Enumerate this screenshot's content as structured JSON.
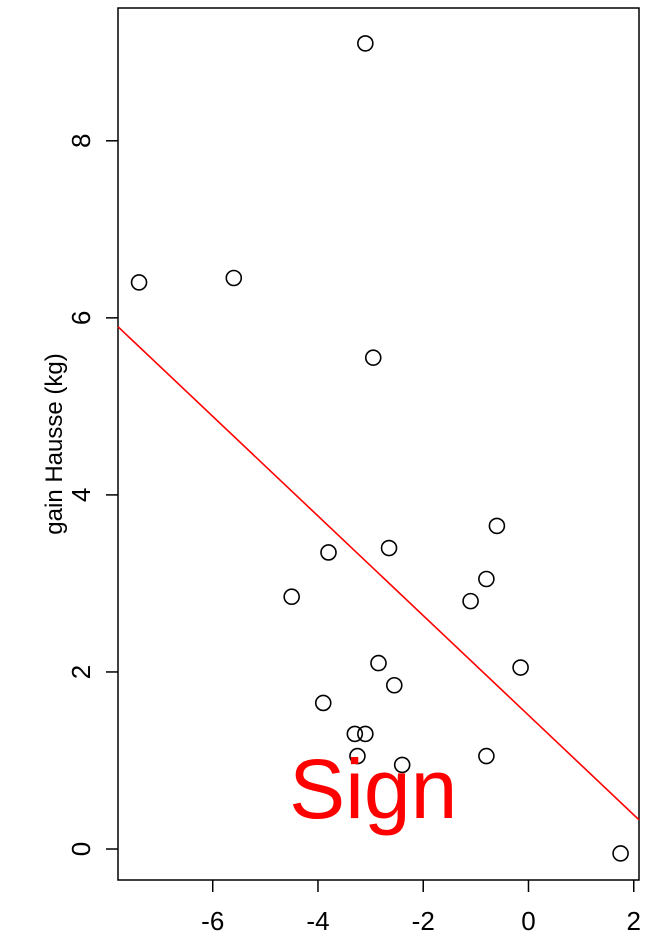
{
  "chart_data": {
    "type": "scatter",
    "title": "",
    "xlabel": "",
    "ylabel": "gain Hausse (kg)",
    "xlim": [
      -7.8,
      2.1
    ],
    "ylim": [
      -0.35,
      9.5
    ],
    "x_ticks": [
      -6,
      -4,
      -2,
      0,
      2
    ],
    "y_ticks": [
      0,
      2,
      4,
      6,
      8
    ],
    "grid": false,
    "points": [
      {
        "x": -7.4,
        "y": 6.4
      },
      {
        "x": -5.6,
        "y": 6.45
      },
      {
        "x": -3.1,
        "y": 9.1
      },
      {
        "x": -2.95,
        "y": 5.55
      },
      {
        "x": -4.5,
        "y": 2.85
      },
      {
        "x": -3.8,
        "y": 3.35
      },
      {
        "x": -2.65,
        "y": 3.4
      },
      {
        "x": -1.1,
        "y": 2.8
      },
      {
        "x": -0.8,
        "y": 3.05
      },
      {
        "x": -0.6,
        "y": 3.65
      },
      {
        "x": -3.9,
        "y": 1.65
      },
      {
        "x": -2.85,
        "y": 2.1
      },
      {
        "x": -2.55,
        "y": 1.85
      },
      {
        "x": -3.3,
        "y": 1.3
      },
      {
        "x": -3.1,
        "y": 1.3
      },
      {
        "x": -3.25,
        "y": 1.05
      },
      {
        "x": -2.4,
        "y": 0.95
      },
      {
        "x": -0.8,
        "y": 1.05
      },
      {
        "x": -0.15,
        "y": 2.05
      },
      {
        "x": 1.75,
        "y": -0.05
      }
    ],
    "fit_line": {
      "x": [
        -7.8,
        2.1
      ],
      "y": [
        5.9,
        0.33
      ],
      "color": "#ff0000"
    },
    "annotation": {
      "text": "Sign",
      "color": "#ff0000",
      "x": -2.95,
      "y": 0.35
    }
  }
}
